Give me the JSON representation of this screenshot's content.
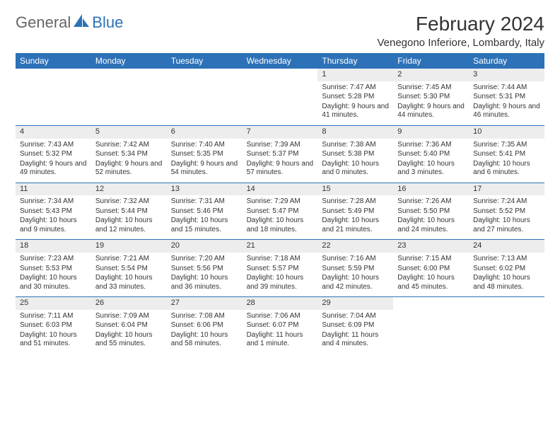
{
  "brand": {
    "part1": "General",
    "part2": "Blue"
  },
  "title": "February 2024",
  "location": "Venegono Inferiore, Lombardy, Italy",
  "colors": {
    "header_bg": "#2d72b8",
    "header_text": "#ffffff",
    "daynum_bg": "#ededed",
    "divider": "#2d72b8",
    "text": "#333333",
    "background": "#ffffff"
  },
  "typography": {
    "title_fontsize": 28,
    "location_fontsize": 15,
    "weekday_fontsize": 12,
    "daynum_fontsize": 11,
    "info_fontsize": 10
  },
  "weekdays": [
    "Sunday",
    "Monday",
    "Tuesday",
    "Wednesday",
    "Thursday",
    "Friday",
    "Saturday"
  ],
  "labels": {
    "sunrise_prefix": "Sunrise: ",
    "sunset_prefix": "Sunset: ",
    "daylight_prefix": "Daylight: "
  },
  "weeks": [
    [
      {
        "empty": true
      },
      {
        "empty": true
      },
      {
        "empty": true
      },
      {
        "empty": true
      },
      {
        "day": "1",
        "sunrise": "7:47 AM",
        "sunset": "5:28 PM",
        "daylight": "9 hours and 41 minutes."
      },
      {
        "day": "2",
        "sunrise": "7:45 AM",
        "sunset": "5:30 PM",
        "daylight": "9 hours and 44 minutes."
      },
      {
        "day": "3",
        "sunrise": "7:44 AM",
        "sunset": "5:31 PM",
        "daylight": "9 hours and 46 minutes."
      }
    ],
    [
      {
        "day": "4",
        "sunrise": "7:43 AM",
        "sunset": "5:32 PM",
        "daylight": "9 hours and 49 minutes."
      },
      {
        "day": "5",
        "sunrise": "7:42 AM",
        "sunset": "5:34 PM",
        "daylight": "9 hours and 52 minutes."
      },
      {
        "day": "6",
        "sunrise": "7:40 AM",
        "sunset": "5:35 PM",
        "daylight": "9 hours and 54 minutes."
      },
      {
        "day": "7",
        "sunrise": "7:39 AM",
        "sunset": "5:37 PM",
        "daylight": "9 hours and 57 minutes."
      },
      {
        "day": "8",
        "sunrise": "7:38 AM",
        "sunset": "5:38 PM",
        "daylight": "10 hours and 0 minutes."
      },
      {
        "day": "9",
        "sunrise": "7:36 AM",
        "sunset": "5:40 PM",
        "daylight": "10 hours and 3 minutes."
      },
      {
        "day": "10",
        "sunrise": "7:35 AM",
        "sunset": "5:41 PM",
        "daylight": "10 hours and 6 minutes."
      }
    ],
    [
      {
        "day": "11",
        "sunrise": "7:34 AM",
        "sunset": "5:43 PM",
        "daylight": "10 hours and 9 minutes."
      },
      {
        "day": "12",
        "sunrise": "7:32 AM",
        "sunset": "5:44 PM",
        "daylight": "10 hours and 12 minutes."
      },
      {
        "day": "13",
        "sunrise": "7:31 AM",
        "sunset": "5:46 PM",
        "daylight": "10 hours and 15 minutes."
      },
      {
        "day": "14",
        "sunrise": "7:29 AM",
        "sunset": "5:47 PM",
        "daylight": "10 hours and 18 minutes."
      },
      {
        "day": "15",
        "sunrise": "7:28 AM",
        "sunset": "5:49 PM",
        "daylight": "10 hours and 21 minutes."
      },
      {
        "day": "16",
        "sunrise": "7:26 AM",
        "sunset": "5:50 PM",
        "daylight": "10 hours and 24 minutes."
      },
      {
        "day": "17",
        "sunrise": "7:24 AM",
        "sunset": "5:52 PM",
        "daylight": "10 hours and 27 minutes."
      }
    ],
    [
      {
        "day": "18",
        "sunrise": "7:23 AM",
        "sunset": "5:53 PM",
        "daylight": "10 hours and 30 minutes."
      },
      {
        "day": "19",
        "sunrise": "7:21 AM",
        "sunset": "5:54 PM",
        "daylight": "10 hours and 33 minutes."
      },
      {
        "day": "20",
        "sunrise": "7:20 AM",
        "sunset": "5:56 PM",
        "daylight": "10 hours and 36 minutes."
      },
      {
        "day": "21",
        "sunrise": "7:18 AM",
        "sunset": "5:57 PM",
        "daylight": "10 hours and 39 minutes."
      },
      {
        "day": "22",
        "sunrise": "7:16 AM",
        "sunset": "5:59 PM",
        "daylight": "10 hours and 42 minutes."
      },
      {
        "day": "23",
        "sunrise": "7:15 AM",
        "sunset": "6:00 PM",
        "daylight": "10 hours and 45 minutes."
      },
      {
        "day": "24",
        "sunrise": "7:13 AM",
        "sunset": "6:02 PM",
        "daylight": "10 hours and 48 minutes."
      }
    ],
    [
      {
        "day": "25",
        "sunrise": "7:11 AM",
        "sunset": "6:03 PM",
        "daylight": "10 hours and 51 minutes."
      },
      {
        "day": "26",
        "sunrise": "7:09 AM",
        "sunset": "6:04 PM",
        "daylight": "10 hours and 55 minutes."
      },
      {
        "day": "27",
        "sunrise": "7:08 AM",
        "sunset": "6:06 PM",
        "daylight": "10 hours and 58 minutes."
      },
      {
        "day": "28",
        "sunrise": "7:06 AM",
        "sunset": "6:07 PM",
        "daylight": "11 hours and 1 minute."
      },
      {
        "day": "29",
        "sunrise": "7:04 AM",
        "sunset": "6:09 PM",
        "daylight": "11 hours and 4 minutes."
      },
      {
        "empty": true
      },
      {
        "empty": true
      }
    ]
  ]
}
